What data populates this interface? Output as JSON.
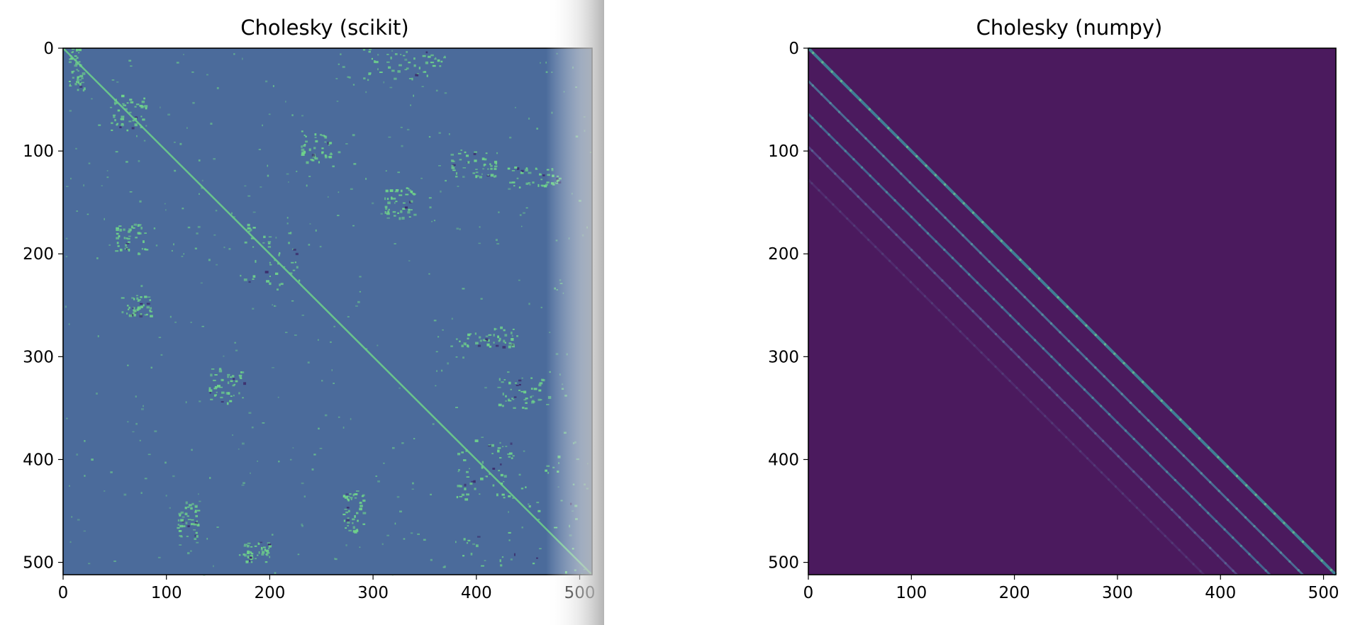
{
  "chart_data": [
    {
      "type": "heatmap",
      "title": "Cholesky (scikit)",
      "xlabel": "",
      "ylabel": "",
      "matrix_size": 512,
      "xlim": [
        0,
        512
      ],
      "ylim": [
        512,
        0
      ],
      "x_ticks": [
        0,
        100,
        200,
        300,
        400,
        500
      ],
      "y_ticks": [
        0,
        100,
        200,
        300,
        400,
        500
      ],
      "colormap": "viridis",
      "background_color": "#4b6b9b",
      "highlight_color": "#6fd38a",
      "dark_color": "#3b2a6a",
      "pattern": "sparse scattered factor with main diagonal (fill-reducing reordering)",
      "main_diagonal": [
        [
          0,
          0
        ],
        [
          512,
          512
        ]
      ],
      "scattered_segments": [
        {
          "row": [
            45,
            80
          ],
          "col": [
            45,
            80
          ]
        },
        {
          "row": [
            170,
            230
          ],
          "col": [
            170,
            230
          ]
        },
        {
          "row": [
            380,
            440
          ],
          "col": [
            380,
            440
          ]
        },
        {
          "row": [
            240,
            260
          ],
          "col": [
            55,
            85
          ]
        },
        {
          "row": [
            170,
            200
          ],
          "col": [
            50,
            80
          ]
        },
        {
          "row": [
            80,
            110
          ],
          "col": [
            230,
            260
          ]
        },
        {
          "row": [
            100,
            125
          ],
          "col": [
            375,
            420
          ]
        },
        {
          "row": [
            115,
            135
          ],
          "col": [
            430,
            480
          ]
        },
        {
          "row": [
            135,
            165
          ],
          "col": [
            310,
            340
          ]
        },
        {
          "row": [
            270,
            290
          ],
          "col": [
            380,
            440
          ]
        },
        {
          "row": [
            440,
            475
          ],
          "col": [
            110,
            130
          ]
        },
        {
          "row": [
            480,
            500
          ],
          "col": [
            170,
            200
          ]
        },
        {
          "row": [
            430,
            470
          ],
          "col": [
            270,
            290
          ]
        },
        {
          "row": [
            310,
            345
          ],
          "col": [
            140,
            175
          ]
        },
        {
          "row": [
            320,
            350
          ],
          "col": [
            420,
            470
          ]
        },
        {
          "row": [
            0,
            40
          ],
          "col": [
            5,
            20
          ]
        },
        {
          "row": [
            0,
            30
          ],
          "col": [
            290,
            370
          ]
        },
        {
          "row": [
            390,
            510
          ],
          "col": [
            380,
            500
          ]
        }
      ],
      "side_shadow_color": "#b0b0b0"
    },
    {
      "type": "heatmap",
      "title": "Cholesky (numpy)",
      "xlabel": "",
      "ylabel": "",
      "matrix_size": 512,
      "xlim": [
        0,
        512
      ],
      "ylim": [
        512,
        0
      ],
      "x_ticks": [
        0,
        100,
        200,
        300,
        400,
        500
      ],
      "y_ticks": [
        0,
        100,
        200,
        300,
        400,
        500
      ],
      "colormap": "viridis",
      "background_color": "#4b1a5e",
      "pattern": "banded lower-triangular factor",
      "bands": [
        {
          "offset": 0,
          "color": "#3e8e9c",
          "intensity": 0.75
        },
        {
          "offset": 32,
          "color": "#4b7fa0",
          "intensity": 0.6
        },
        {
          "offset": 64,
          "color": "#437c9d",
          "intensity": 0.55
        },
        {
          "offset": 96,
          "color": "#5b5799",
          "intensity": 0.35
        },
        {
          "offset": 128,
          "color": "#55367a",
          "intensity": 0.15
        }
      ]
    }
  ]
}
